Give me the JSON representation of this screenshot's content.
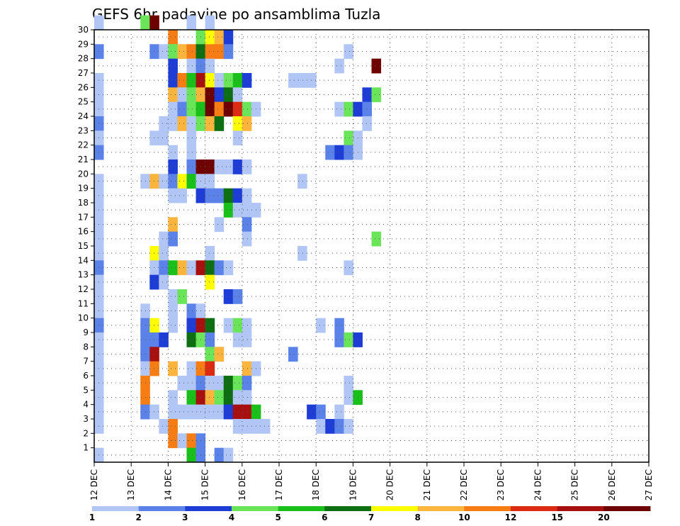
{
  "chart_data": {
    "type": "heatmap",
    "title": "GEFS 6hr padavine po ansamblima Tuzla",
    "x_ticks": [
      "12 DEC",
      "13 DEC",
      "14 DEC",
      "15 DEC",
      "16 DEC",
      "17 DEC",
      "18 DEC",
      "19 DEC",
      "20 DEC",
      "21 DEC",
      "22 DEC",
      "23 DEC",
      "24 DEC",
      "25 DEC",
      "26 DEC",
      "27 DEC"
    ],
    "y_ticks": [
      "1",
      "2",
      "3",
      "4",
      "5",
      "6",
      "7",
      "8",
      "9",
      "10",
      "11",
      "12",
      "13",
      "14",
      "15",
      "16",
      "17",
      "18",
      "19",
      "20",
      "21",
      "22",
      "23",
      "24",
      "25",
      "26",
      "27",
      "28",
      "29",
      "30"
    ],
    "xlim": [
      0,
      60
    ],
    "ylim": [
      0,
      30
    ],
    "grid": true,
    "colorbar": {
      "labels": [
        "1",
        "2",
        "3",
        "4",
        "5",
        "6",
        "7",
        "8",
        "10",
        "12",
        "15",
        "20"
      ],
      "colors": [
        "#b2c6f5",
        "#5a82e9",
        "#1e3cd6",
        "#6ae55a",
        "#19c019",
        "#0d6e12",
        "#ffff00",
        "#fbb43c",
        "#f67d14",
        "#dd2a12",
        "#a80f0f",
        "#6e0000"
      ]
    },
    "cells": [
      [
        0,
        30,
        0
      ],
      [
        5,
        30,
        3
      ],
      [
        6,
        30,
        11
      ],
      [
        10,
        30,
        0
      ],
      [
        12,
        30,
        0
      ],
      [
        8,
        29,
        8
      ],
      [
        11,
        29,
        3
      ],
      [
        12,
        29,
        6
      ],
      [
        13,
        29,
        7
      ],
      [
        14,
        29,
        2
      ],
      [
        0,
        28,
        1
      ],
      [
        6,
        28,
        1
      ],
      [
        7,
        28,
        0
      ],
      [
        8,
        28,
        3
      ],
      [
        8,
        28,
        3
      ],
      [
        9,
        28,
        7
      ],
      [
        10,
        28,
        8
      ],
      [
        11,
        28,
        5
      ],
      [
        12,
        28,
        8
      ],
      [
        13,
        28,
        8
      ],
      [
        14,
        28,
        1
      ],
      [
        27,
        28,
        0
      ],
      [
        8,
        27,
        2
      ],
      [
        10,
        27,
        0
      ],
      [
        11,
        27,
        1
      ],
      [
        12,
        27,
        0
      ],
      [
        26,
        27,
        0
      ],
      [
        30,
        27,
        11
      ],
      [
        0,
        26,
        0
      ],
      [
        8,
        26,
        2
      ],
      [
        9,
        26,
        8
      ],
      [
        10,
        26,
        4
      ],
      [
        11,
        26,
        10
      ],
      [
        12,
        26,
        6
      ],
      [
        13,
        26,
        0
      ],
      [
        14,
        26,
        3
      ],
      [
        15,
        26,
        4
      ],
      [
        16,
        26,
        2
      ],
      [
        21,
        26,
        0
      ],
      [
        22,
        26,
        0
      ],
      [
        23,
        26,
        0
      ],
      [
        0,
        25,
        0
      ],
      [
        8,
        25,
        7
      ],
      [
        9,
        25,
        0
      ],
      [
        10,
        25,
        3
      ],
      [
        11,
        25,
        7
      ],
      [
        12,
        25,
        11
      ],
      [
        13,
        25,
        2
      ],
      [
        14,
        25,
        5
      ],
      [
        15,
        25,
        0
      ],
      [
        29,
        25,
        2
      ],
      [
        30,
        25,
        3
      ],
      [
        0,
        24,
        0
      ],
      [
        8,
        24,
        0
      ],
      [
        9,
        24,
        1
      ],
      [
        10,
        24,
        3
      ],
      [
        11,
        24,
        4
      ],
      [
        12,
        24,
        11
      ],
      [
        13,
        24,
        8
      ],
      [
        14,
        24,
        11
      ],
      [
        15,
        24,
        9
      ],
      [
        16,
        24,
        3
      ],
      [
        17,
        24,
        0
      ],
      [
        26,
        24,
        0
      ],
      [
        27,
        24,
        3
      ],
      [
        28,
        24,
        2
      ],
      [
        29,
        24,
        1
      ],
      [
        0,
        23,
        1
      ],
      [
        7,
        23,
        0
      ],
      [
        8,
        23,
        0
      ],
      [
        9,
        23,
        7
      ],
      [
        10,
        23,
        0
      ],
      [
        11,
        23,
        3
      ],
      [
        12,
        23,
        7
      ],
      [
        13,
        23,
        5
      ],
      [
        15,
        23,
        6
      ],
      [
        16,
        23,
        7
      ],
      [
        29,
        23,
        0
      ],
      [
        0,
        22,
        0
      ],
      [
        6,
        22,
        0
      ],
      [
        7,
        22,
        0
      ],
      [
        10,
        22,
        0
      ],
      [
        15,
        22,
        0
      ],
      [
        27,
        22,
        3
      ],
      [
        28,
        22,
        0
      ],
      [
        0,
        21,
        1
      ],
      [
        8,
        21,
        0
      ],
      [
        10,
        21,
        0
      ],
      [
        25,
        21,
        1
      ],
      [
        26,
        21,
        2
      ],
      [
        27,
        21,
        1
      ],
      [
        28,
        21,
        0
      ],
      [
        8,
        20,
        2
      ],
      [
        10,
        20,
        1
      ],
      [
        11,
        20,
        11
      ],
      [
        12,
        20,
        11
      ],
      [
        13,
        20,
        0
      ],
      [
        14,
        20,
        0
      ],
      [
        15,
        20,
        2
      ],
      [
        16,
        20,
        0
      ],
      [
        0,
        19,
        0
      ],
      [
        5,
        19,
        0
      ],
      [
        6,
        19,
        7
      ],
      [
        7,
        19,
        0
      ],
      [
        8,
        19,
        1
      ],
      [
        9,
        19,
        6
      ],
      [
        10,
        19,
        4
      ],
      [
        11,
        19,
        0
      ],
      [
        12,
        19,
        0
      ],
      [
        22,
        19,
        0
      ],
      [
        0,
        18,
        0
      ],
      [
        8,
        18,
        0
      ],
      [
        9,
        18,
        0
      ],
      [
        11,
        18,
        2
      ],
      [
        12,
        18,
        1
      ],
      [
        13,
        18,
        1
      ],
      [
        14,
        18,
        5
      ],
      [
        15,
        18,
        2
      ],
      [
        16,
        18,
        0
      ],
      [
        0,
        17,
        0
      ],
      [
        14,
        17,
        4
      ],
      [
        15,
        17,
        0
      ],
      [
        16,
        17,
        0
      ],
      [
        17,
        17,
        0
      ],
      [
        0,
        16,
        0
      ],
      [
        8,
        16,
        7
      ],
      [
        13,
        16,
        0
      ],
      [
        16,
        16,
        1
      ],
      [
        0,
        15,
        0
      ],
      [
        7,
        15,
        0
      ],
      [
        8,
        15,
        1
      ],
      [
        16,
        15,
        0
      ],
      [
        30,
        15,
        3
      ],
      [
        0,
        14,
        0
      ],
      [
        6,
        14,
        6
      ],
      [
        7,
        14,
        0
      ],
      [
        12,
        14,
        0
      ],
      [
        22,
        14,
        0
      ],
      [
        0,
        13,
        1
      ],
      [
        6,
        13,
        0
      ],
      [
        7,
        13,
        1
      ],
      [
        8,
        13,
        4
      ],
      [
        9,
        13,
        7
      ],
      [
        10,
        13,
        0
      ],
      [
        11,
        13,
        10
      ],
      [
        12,
        13,
        5
      ],
      [
        13,
        13,
        1
      ],
      [
        14,
        13,
        0
      ],
      [
        27,
        13,
        0
      ],
      [
        0,
        12,
        0
      ],
      [
        6,
        12,
        2
      ],
      [
        7,
        12,
        0
      ],
      [
        12,
        12,
        6
      ],
      [
        0,
        11,
        0
      ],
      [
        8,
        11,
        0
      ],
      [
        9,
        11,
        3
      ],
      [
        14,
        11,
        2
      ],
      [
        15,
        11,
        1
      ],
      [
        0,
        10,
        0
      ],
      [
        5,
        10,
        0
      ],
      [
        8,
        10,
        0
      ],
      [
        10,
        10,
        1
      ],
      [
        11,
        10,
        0
      ],
      [
        0,
        9,
        1
      ],
      [
        5,
        9,
        1
      ],
      [
        6,
        9,
        6
      ],
      [
        8,
        9,
        0
      ],
      [
        10,
        9,
        2
      ],
      [
        11,
        9,
        10
      ],
      [
        12,
        9,
        5
      ],
      [
        14,
        9,
        0
      ],
      [
        15,
        9,
        3
      ],
      [
        16,
        9,
        0
      ],
      [
        26,
        9,
        1
      ],
      [
        24,
        9,
        0
      ],
      [
        0,
        8,
        0
      ],
      [
        5,
        8,
        1
      ],
      [
        6,
        8,
        1
      ],
      [
        7,
        8,
        2
      ],
      [
        10,
        8,
        5
      ],
      [
        11,
        8,
        3
      ],
      [
        12,
        8,
        1
      ],
      [
        15,
        8,
        0
      ],
      [
        16,
        8,
        0
      ],
      [
        26,
        8,
        1
      ],
      [
        27,
        8,
        3
      ],
      [
        28,
        8,
        2
      ],
      [
        0,
        7,
        0
      ],
      [
        5,
        7,
        1
      ],
      [
        6,
        7,
        10
      ],
      [
        12,
        7,
        3
      ],
      [
        13,
        7,
        7
      ],
      [
        21,
        7,
        1
      ],
      [
        0,
        6,
        0
      ],
      [
        5,
        6,
        0
      ],
      [
        6,
        6,
        8
      ],
      [
        8,
        6,
        7
      ],
      [
        10,
        6,
        0
      ],
      [
        11,
        6,
        8
      ],
      [
        12,
        6,
        9
      ],
      [
        16,
        6,
        7
      ],
      [
        17,
        6,
        0
      ],
      [
        0,
        5,
        0
      ],
      [
        5,
        5,
        8
      ],
      [
        9,
        5,
        0
      ],
      [
        10,
        5,
        0
      ],
      [
        11,
        5,
        1
      ],
      [
        12,
        5,
        0
      ],
      [
        13,
        5,
        0
      ],
      [
        14,
        5,
        5
      ],
      [
        15,
        5,
        3
      ],
      [
        16,
        5,
        1
      ],
      [
        27,
        5,
        0
      ],
      [
        0,
        4,
        0
      ],
      [
        5,
        4,
        8
      ],
      [
        8,
        4,
        0
      ],
      [
        10,
        4,
        4
      ],
      [
        11,
        4,
        10
      ],
      [
        12,
        4,
        7
      ],
      [
        13,
        4,
        3
      ],
      [
        14,
        4,
        5
      ],
      [
        15,
        4,
        0
      ],
      [
        16,
        4,
        0
      ],
      [
        27,
        4,
        0
      ],
      [
        28,
        4,
        4
      ],
      [
        0,
        3,
        0
      ],
      [
        5,
        3,
        1
      ],
      [
        6,
        3,
        0
      ],
      [
        8,
        3,
        0
      ],
      [
        9,
        3,
        0
      ],
      [
        10,
        3,
        0
      ],
      [
        11,
        3,
        0
      ],
      [
        12,
        3,
        0
      ],
      [
        13,
        3,
        0
      ],
      [
        14,
        3,
        2
      ],
      [
        15,
        3,
        10
      ],
      [
        16,
        3,
        10
      ],
      [
        17,
        3,
        4
      ],
      [
        23,
        3,
        2
      ],
      [
        24,
        3,
        1
      ],
      [
        26,
        3,
        0
      ],
      [
        0,
        2,
        0
      ],
      [
        7,
        2,
        0
      ],
      [
        8,
        2,
        8
      ],
      [
        15,
        2,
        0
      ],
      [
        16,
        2,
        0
      ],
      [
        17,
        2,
        0
      ],
      [
        18,
        2,
        0
      ],
      [
        24,
        2,
        0
      ],
      [
        25,
        2,
        2
      ],
      [
        26,
        2,
        1
      ],
      [
        27,
        2,
        0
      ],
      [
        8,
        1,
        8
      ],
      [
        9,
        1,
        0
      ],
      [
        10,
        1,
        8
      ],
      [
        11,
        1,
        1
      ],
      [
        0,
        0,
        0
      ],
      [
        10,
        0,
        4
      ],
      [
        11,
        0,
        1
      ],
      [
        13,
        0,
        1
      ],
      [
        14,
        0,
        0
      ]
    ]
  }
}
